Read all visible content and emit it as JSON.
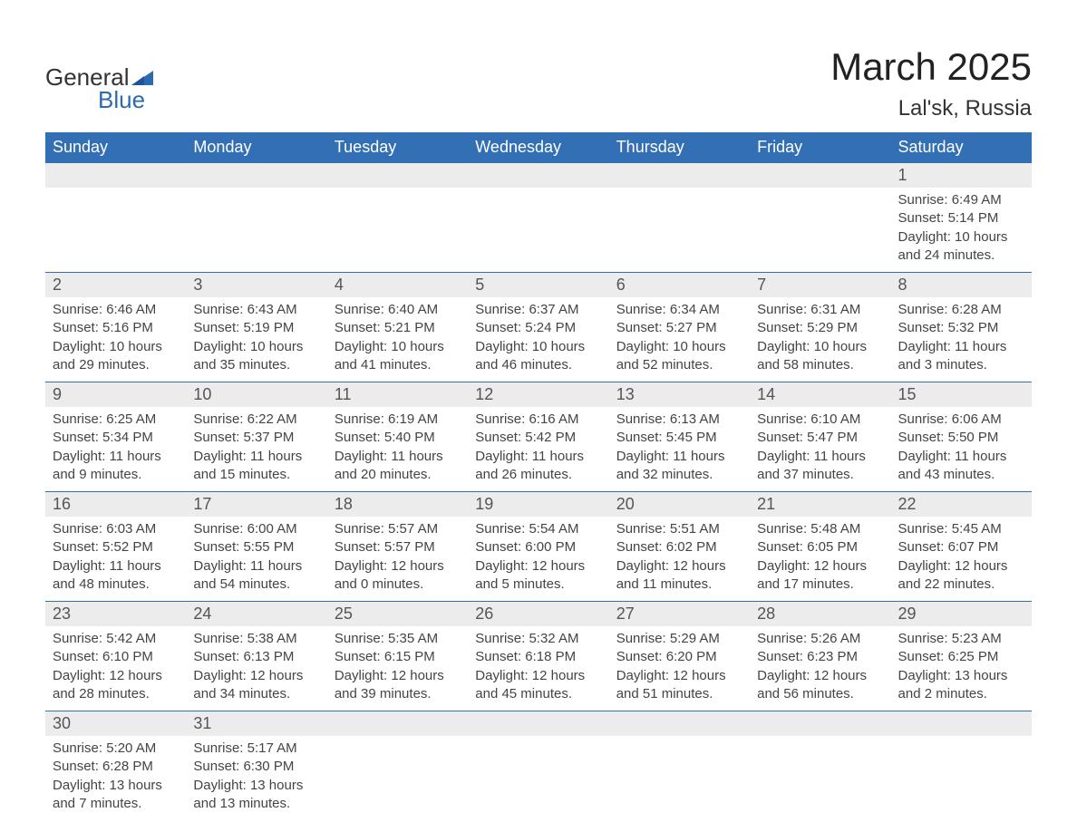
{
  "logo": {
    "general": "General",
    "blue": "Blue",
    "accent": "#2b6cb0"
  },
  "title": "March 2025",
  "location": "Lal'sk, Russia",
  "colors": {
    "header_bg": "#336fb5",
    "header_text": "#ffffff",
    "daynum_bg": "#ececec",
    "row_border": "#336fb5",
    "body_text": "#444444",
    "daynum_text": "#555555",
    "page_bg": "#ffffff"
  },
  "fonts": {
    "title_size": 42,
    "location_size": 24,
    "header_size": 18,
    "daynum_size": 18,
    "cell_size": 15
  },
  "weekdays": [
    "Sunday",
    "Monday",
    "Tuesday",
    "Wednesday",
    "Thursday",
    "Friday",
    "Saturday"
  ],
  "weeks": [
    [
      null,
      null,
      null,
      null,
      null,
      null,
      {
        "d": "1",
        "sr": "Sunrise: 6:49 AM",
        "ss": "Sunset: 5:14 PM",
        "dl1": "Daylight: 10 hours",
        "dl2": "and 24 minutes."
      }
    ],
    [
      {
        "d": "2",
        "sr": "Sunrise: 6:46 AM",
        "ss": "Sunset: 5:16 PM",
        "dl1": "Daylight: 10 hours",
        "dl2": "and 29 minutes."
      },
      {
        "d": "3",
        "sr": "Sunrise: 6:43 AM",
        "ss": "Sunset: 5:19 PM",
        "dl1": "Daylight: 10 hours",
        "dl2": "and 35 minutes."
      },
      {
        "d": "4",
        "sr": "Sunrise: 6:40 AM",
        "ss": "Sunset: 5:21 PM",
        "dl1": "Daylight: 10 hours",
        "dl2": "and 41 minutes."
      },
      {
        "d": "5",
        "sr": "Sunrise: 6:37 AM",
        "ss": "Sunset: 5:24 PM",
        "dl1": "Daylight: 10 hours",
        "dl2": "and 46 minutes."
      },
      {
        "d": "6",
        "sr": "Sunrise: 6:34 AM",
        "ss": "Sunset: 5:27 PM",
        "dl1": "Daylight: 10 hours",
        "dl2": "and 52 minutes."
      },
      {
        "d": "7",
        "sr": "Sunrise: 6:31 AM",
        "ss": "Sunset: 5:29 PM",
        "dl1": "Daylight: 10 hours",
        "dl2": "and 58 minutes."
      },
      {
        "d": "8",
        "sr": "Sunrise: 6:28 AM",
        "ss": "Sunset: 5:32 PM",
        "dl1": "Daylight: 11 hours",
        "dl2": "and 3 minutes."
      }
    ],
    [
      {
        "d": "9",
        "sr": "Sunrise: 6:25 AM",
        "ss": "Sunset: 5:34 PM",
        "dl1": "Daylight: 11 hours",
        "dl2": "and 9 minutes."
      },
      {
        "d": "10",
        "sr": "Sunrise: 6:22 AM",
        "ss": "Sunset: 5:37 PM",
        "dl1": "Daylight: 11 hours",
        "dl2": "and 15 minutes."
      },
      {
        "d": "11",
        "sr": "Sunrise: 6:19 AM",
        "ss": "Sunset: 5:40 PM",
        "dl1": "Daylight: 11 hours",
        "dl2": "and 20 minutes."
      },
      {
        "d": "12",
        "sr": "Sunrise: 6:16 AM",
        "ss": "Sunset: 5:42 PM",
        "dl1": "Daylight: 11 hours",
        "dl2": "and 26 minutes."
      },
      {
        "d": "13",
        "sr": "Sunrise: 6:13 AM",
        "ss": "Sunset: 5:45 PM",
        "dl1": "Daylight: 11 hours",
        "dl2": "and 32 minutes."
      },
      {
        "d": "14",
        "sr": "Sunrise: 6:10 AM",
        "ss": "Sunset: 5:47 PM",
        "dl1": "Daylight: 11 hours",
        "dl2": "and 37 minutes."
      },
      {
        "d": "15",
        "sr": "Sunrise: 6:06 AM",
        "ss": "Sunset: 5:50 PM",
        "dl1": "Daylight: 11 hours",
        "dl2": "and 43 minutes."
      }
    ],
    [
      {
        "d": "16",
        "sr": "Sunrise: 6:03 AM",
        "ss": "Sunset: 5:52 PM",
        "dl1": "Daylight: 11 hours",
        "dl2": "and 48 minutes."
      },
      {
        "d": "17",
        "sr": "Sunrise: 6:00 AM",
        "ss": "Sunset: 5:55 PM",
        "dl1": "Daylight: 11 hours",
        "dl2": "and 54 minutes."
      },
      {
        "d": "18",
        "sr": "Sunrise: 5:57 AM",
        "ss": "Sunset: 5:57 PM",
        "dl1": "Daylight: 12 hours",
        "dl2": "and 0 minutes."
      },
      {
        "d": "19",
        "sr": "Sunrise: 5:54 AM",
        "ss": "Sunset: 6:00 PM",
        "dl1": "Daylight: 12 hours",
        "dl2": "and 5 minutes."
      },
      {
        "d": "20",
        "sr": "Sunrise: 5:51 AM",
        "ss": "Sunset: 6:02 PM",
        "dl1": "Daylight: 12 hours",
        "dl2": "and 11 minutes."
      },
      {
        "d": "21",
        "sr": "Sunrise: 5:48 AM",
        "ss": "Sunset: 6:05 PM",
        "dl1": "Daylight: 12 hours",
        "dl2": "and 17 minutes."
      },
      {
        "d": "22",
        "sr": "Sunrise: 5:45 AM",
        "ss": "Sunset: 6:07 PM",
        "dl1": "Daylight: 12 hours",
        "dl2": "and 22 minutes."
      }
    ],
    [
      {
        "d": "23",
        "sr": "Sunrise: 5:42 AM",
        "ss": "Sunset: 6:10 PM",
        "dl1": "Daylight: 12 hours",
        "dl2": "and 28 minutes."
      },
      {
        "d": "24",
        "sr": "Sunrise: 5:38 AM",
        "ss": "Sunset: 6:13 PM",
        "dl1": "Daylight: 12 hours",
        "dl2": "and 34 minutes."
      },
      {
        "d": "25",
        "sr": "Sunrise: 5:35 AM",
        "ss": "Sunset: 6:15 PM",
        "dl1": "Daylight: 12 hours",
        "dl2": "and 39 minutes."
      },
      {
        "d": "26",
        "sr": "Sunrise: 5:32 AM",
        "ss": "Sunset: 6:18 PM",
        "dl1": "Daylight: 12 hours",
        "dl2": "and 45 minutes."
      },
      {
        "d": "27",
        "sr": "Sunrise: 5:29 AM",
        "ss": "Sunset: 6:20 PM",
        "dl1": "Daylight: 12 hours",
        "dl2": "and 51 minutes."
      },
      {
        "d": "28",
        "sr": "Sunrise: 5:26 AM",
        "ss": "Sunset: 6:23 PM",
        "dl1": "Daylight: 12 hours",
        "dl2": "and 56 minutes."
      },
      {
        "d": "29",
        "sr": "Sunrise: 5:23 AM",
        "ss": "Sunset: 6:25 PM",
        "dl1": "Daylight: 13 hours",
        "dl2": "and 2 minutes."
      }
    ],
    [
      {
        "d": "30",
        "sr": "Sunrise: 5:20 AM",
        "ss": "Sunset: 6:28 PM",
        "dl1": "Daylight: 13 hours",
        "dl2": "and 7 minutes."
      },
      {
        "d": "31",
        "sr": "Sunrise: 5:17 AM",
        "ss": "Sunset: 6:30 PM",
        "dl1": "Daylight: 13 hours",
        "dl2": "and 13 minutes."
      },
      null,
      null,
      null,
      null,
      null
    ]
  ]
}
